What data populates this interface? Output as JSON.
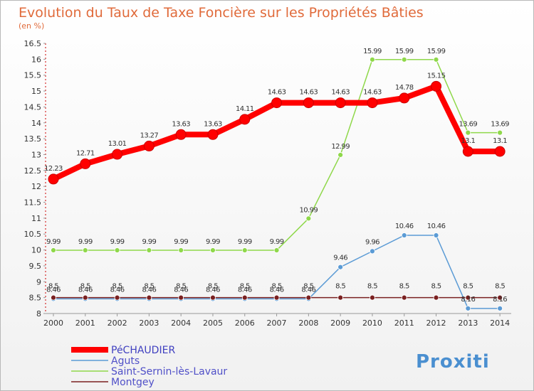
{
  "title": "Evolution du Taux de Taxe Foncière sur les Propriétés Bâties",
  "subtitle": "(en %)",
  "brand": "Proxiti",
  "chart_data": {
    "type": "line",
    "title": "Evolution du Taux de Taxe Foncière sur les Propriétés Bâties",
    "subtitle": "(en %)",
    "xlabel": "",
    "ylabel": "",
    "x": [
      "2000",
      "2001",
      "2002",
      "2003",
      "2004",
      "2005",
      "2006",
      "2007",
      "2008",
      "2009",
      "2010",
      "2011",
      "2012",
      "2013",
      "2014"
    ],
    "ylim": [
      8,
      16.5
    ],
    "yticks": [
      "8",
      "8.5",
      "9",
      "9.5",
      "10",
      "10.5",
      "11",
      "11.5",
      "12",
      "12.5",
      "13",
      "13.5",
      "14",
      "14.5",
      "15",
      "15.5",
      "16",
      "16.5"
    ],
    "grid": false,
    "legend_position": "bottom-left",
    "series": [
      {
        "name": "PéCHAUDIER",
        "color": "#ff0000",
        "values": [
          12.23,
          12.71,
          13.01,
          13.27,
          13.63,
          13.63,
          14.11,
          14.63,
          14.63,
          14.63,
          14.63,
          14.78,
          15.15,
          13.1,
          13.1
        ],
        "labels": [
          "12.23",
          "12.71",
          "13.01",
          "13.27",
          "13.63",
          "13.63",
          "14.11",
          "14.63",
          "14.63",
          "14.63",
          "14.63",
          "14.78",
          "15.15",
          "13.1",
          "13.1"
        ]
      },
      {
        "name": "Aguts",
        "color": "#5b9bd5",
        "values": [
          8.46,
          8.46,
          8.46,
          8.46,
          8.46,
          8.46,
          8.46,
          8.46,
          8.46,
          9.46,
          9.96,
          10.46,
          10.46,
          8.16,
          8.16
        ],
        "labels": [
          "8.46",
          "8.46",
          "8.46",
          "8.46",
          "8.46",
          "8.46",
          "8.46",
          "8.46",
          "8.46",
          "9.46",
          "9.96",
          "10.46",
          "10.46",
          "8.16",
          "8.16"
        ]
      },
      {
        "name": "Saint-Sernin-lès-Lavaur",
        "color": "#8fd84a",
        "values": [
          9.99,
          9.99,
          9.99,
          9.99,
          9.99,
          9.99,
          9.99,
          9.99,
          10.99,
          12.99,
          15.99,
          15.99,
          15.99,
          13.69,
          13.69
        ],
        "labels": [
          "9.99",
          "9.99",
          "9.99",
          "9.99",
          "9.99",
          "9.99",
          "9.99",
          "9.99",
          "10.99",
          "12.99",
          "15.99",
          "15.99",
          "15.99",
          "13.69",
          "13.69"
        ]
      },
      {
        "name": "Montgey",
        "color": "#7a2020",
        "values": [
          8.5,
          8.5,
          8.5,
          8.5,
          8.5,
          8.5,
          8.5,
          8.5,
          8.5,
          8.5,
          8.5,
          8.5,
          8.5,
          8.5,
          8.5
        ],
        "labels": [
          "8.5",
          "8.5",
          "8.5",
          "8.5",
          "8.5",
          "8.5",
          "8.5",
          "8.5",
          "8.5",
          "8.5",
          "8.5",
          "8.5",
          "8.5",
          "8.5",
          "8.5"
        ]
      }
    ]
  }
}
